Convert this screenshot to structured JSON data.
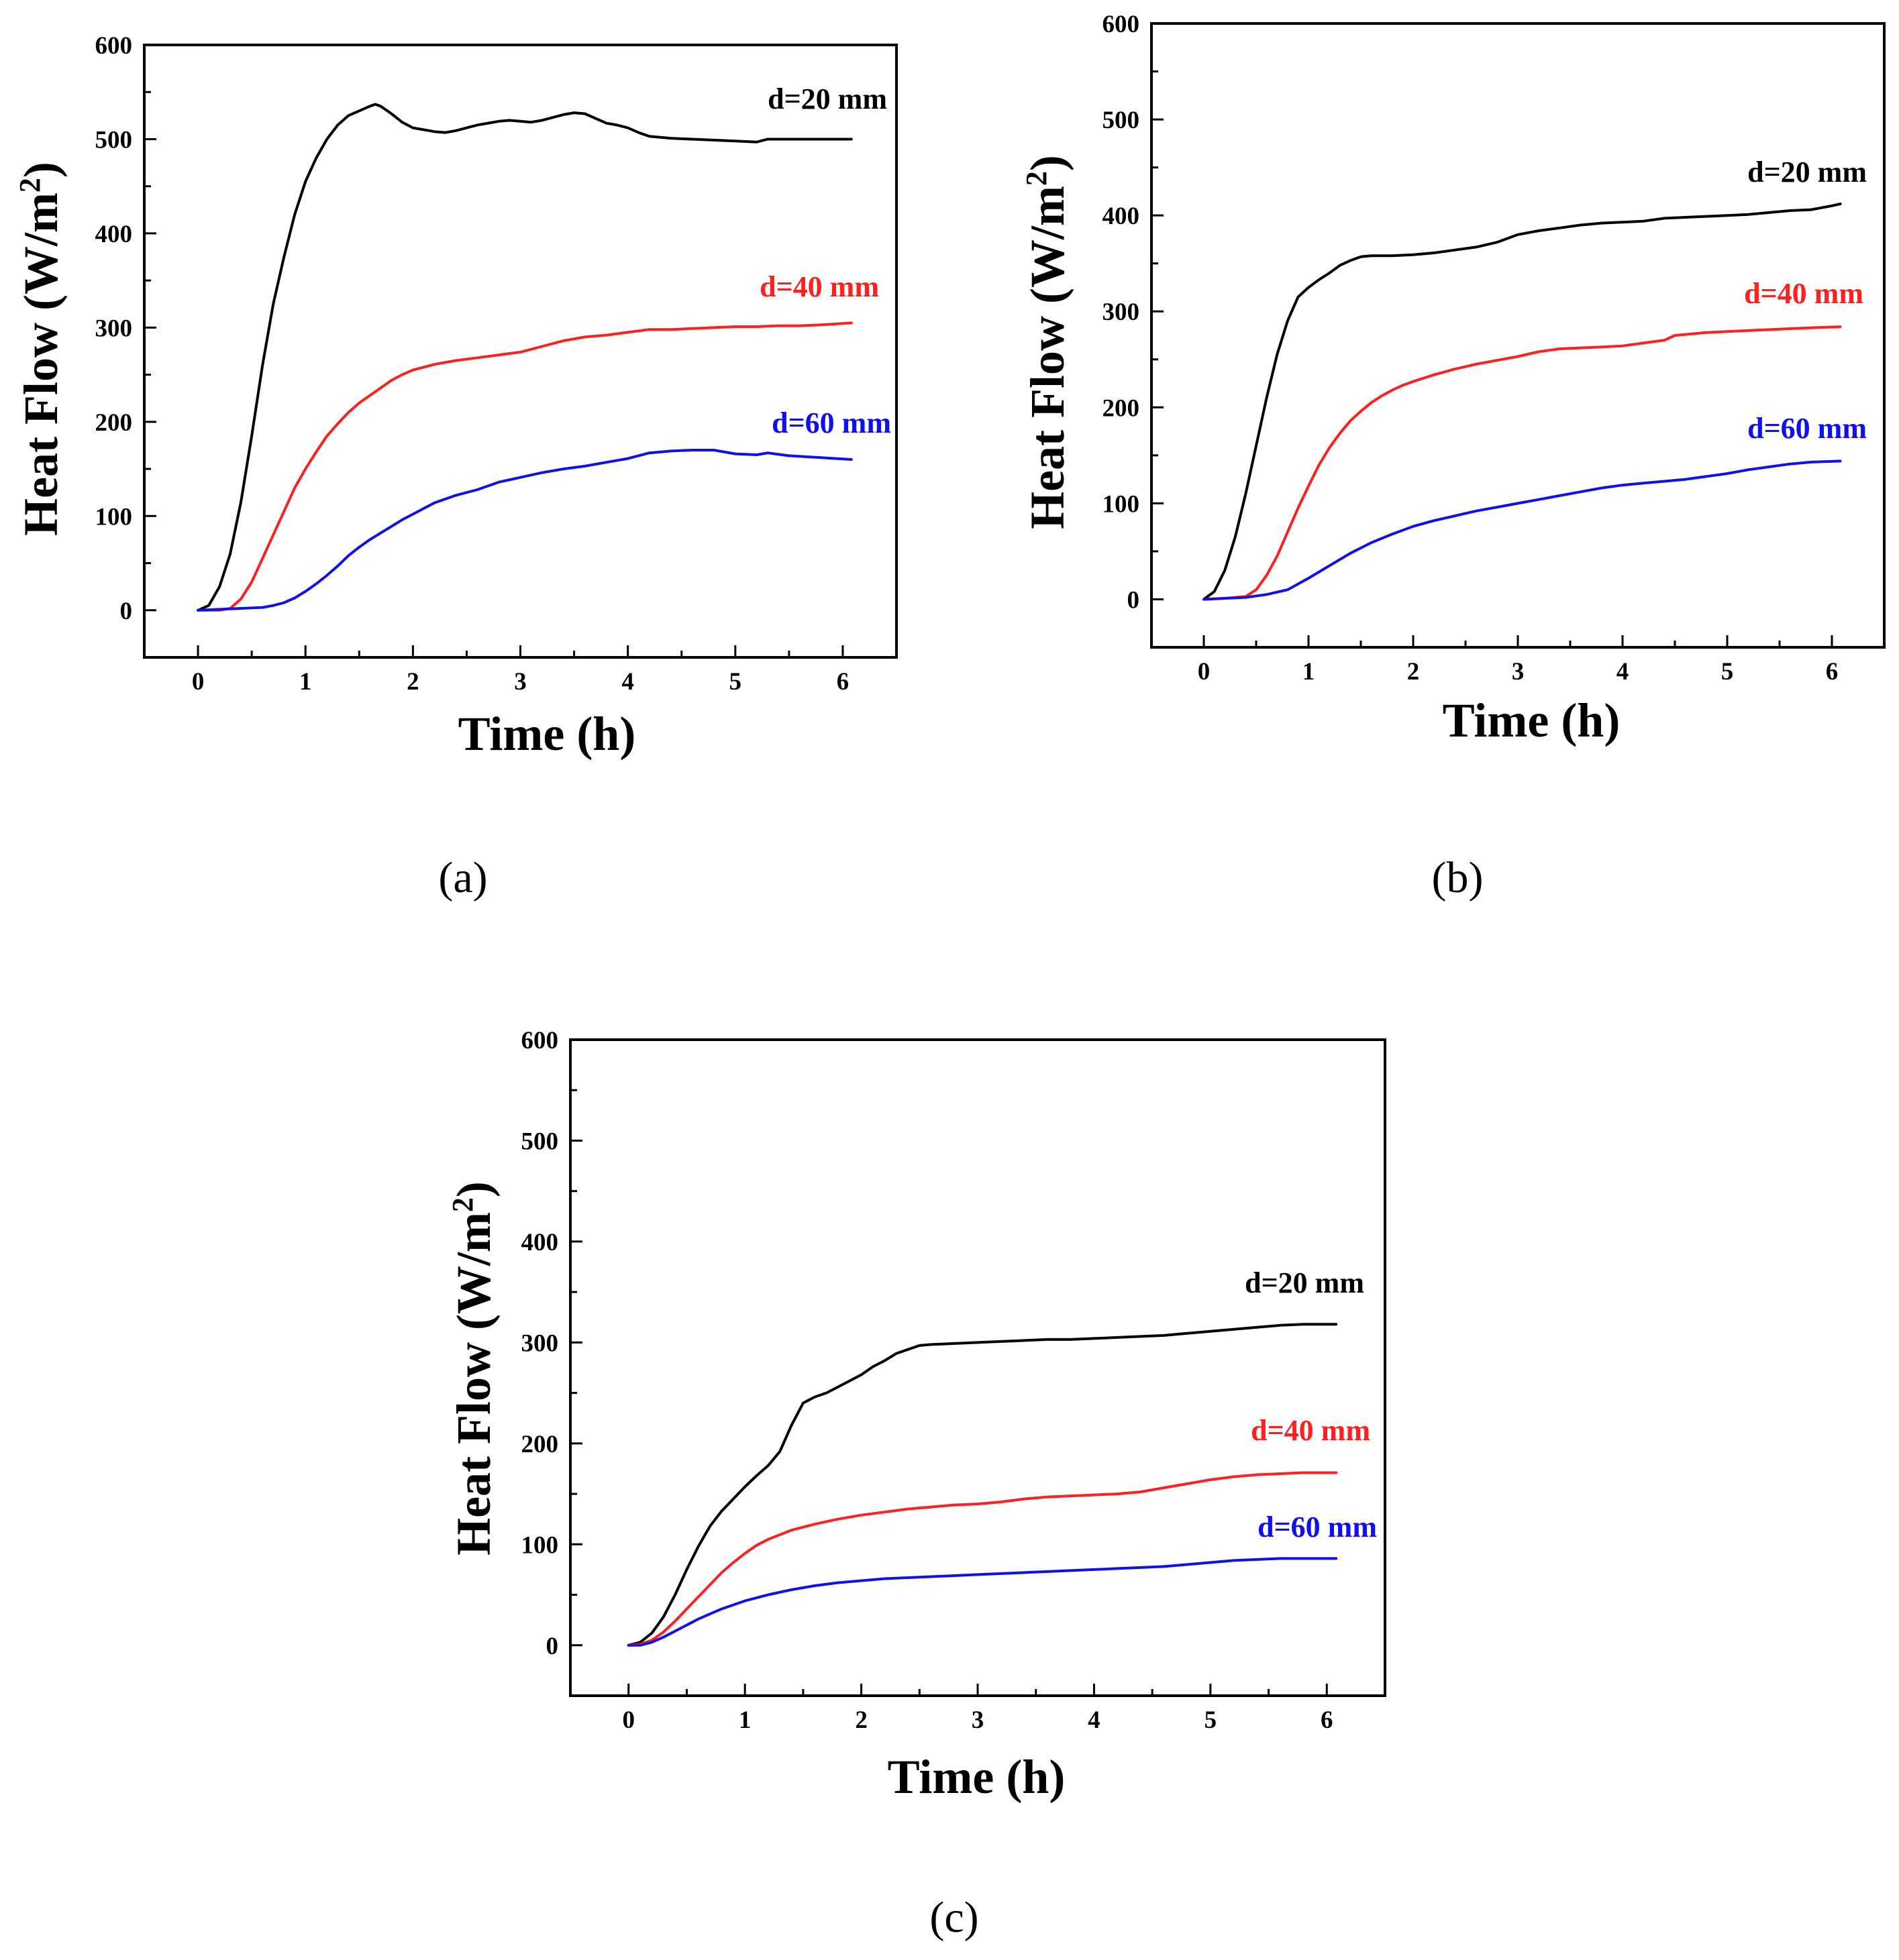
{
  "chart_data": [
    {
      "type": "line",
      "caption": "(a)",
      "xlabel": "Time (h)",
      "ylabel": "Heat Flow (W/m",
      "ylabel_sup": "2",
      "ylabel_close": ")",
      "xlim": [
        -0.5,
        6.5
      ],
      "ylim": [
        -50,
        600
      ],
      "xticks": [
        0,
        1,
        2,
        3,
        4,
        5,
        6
      ],
      "yticks": [
        0,
        100,
        200,
        300,
        400,
        500,
        600
      ],
      "series": [
        {
          "name": "d=20 mm",
          "color": "#000000",
          "x": [
            0,
            0.1,
            0.2,
            0.3,
            0.4,
            0.5,
            0.6,
            0.7,
            0.8,
            0.9,
            1.0,
            1.1,
            1.2,
            1.3,
            1.4,
            1.5,
            1.6,
            1.65,
            1.7,
            1.8,
            1.9,
            2.0,
            2.1,
            2.2,
            2.3,
            2.4,
            2.5,
            2.6,
            2.7,
            2.8,
            2.9,
            3.0,
            3.1,
            3.2,
            3.3,
            3.4,
            3.5,
            3.6,
            3.7,
            3.8,
            3.9,
            4.0,
            4.1,
            4.2,
            4.4,
            4.6,
            4.8,
            5.0,
            5.2,
            5.3,
            5.5,
            5.8,
            6.08
          ],
          "y": [
            0,
            5,
            25,
            60,
            115,
            185,
            260,
            325,
            375,
            420,
            455,
            480,
            500,
            515,
            525,
            530,
            535,
            537,
            535,
            527,
            518,
            512,
            510,
            508,
            507,
            509,
            512,
            515,
            517,
            519,
            520,
            519,
            518,
            520,
            523,
            526,
            528,
            527,
            522,
            517,
            515,
            512,
            507,
            503,
            501,
            500,
            499,
            498,
            497,
            500,
            500,
            500,
            500
          ]
        },
        {
          "name": "d=40 mm",
          "color": "#ff2020",
          "x": [
            0,
            0.2,
            0.3,
            0.4,
            0.5,
            0.6,
            0.7,
            0.8,
            0.9,
            1.0,
            1.1,
            1.2,
            1.3,
            1.4,
            1.5,
            1.6,
            1.7,
            1.8,
            1.9,
            2.0,
            2.2,
            2.4,
            2.6,
            2.8,
            3.0,
            3.2,
            3.4,
            3.6,
            3.8,
            4.0,
            4.2,
            4.4,
            4.6,
            4.8,
            5.0,
            5.2,
            5.4,
            5.6,
            5.8,
            6.08
          ],
          "y": [
            0,
            0,
            2,
            12,
            30,
            55,
            80,
            105,
            130,
            150,
            168,
            185,
            198,
            210,
            220,
            228,
            236,
            244,
            250,
            255,
            261,
            265,
            268,
            271,
            274,
            280,
            286,
            290,
            292,
            295,
            298,
            298,
            299,
            300,
            301,
            301,
            302,
            302,
            303,
            305
          ]
        },
        {
          "name": "d=60 mm",
          "color": "#1010ee",
          "x": [
            0,
            0.2,
            0.4,
            0.6,
            0.7,
            0.8,
            0.9,
            1.0,
            1.1,
            1.2,
            1.3,
            1.4,
            1.5,
            1.6,
            1.7,
            1.8,
            1.9,
            2.0,
            2.2,
            2.4,
            2.6,
            2.8,
            3.0,
            3.2,
            3.4,
            3.6,
            3.8,
            4.0,
            4.2,
            4.4,
            4.6,
            4.8,
            5.0,
            5.2,
            5.3,
            5.5,
            5.8,
            6.08
          ],
          "y": [
            0,
            1,
            2,
            3,
            5,
            8,
            13,
            20,
            28,
            37,
            47,
            58,
            67,
            75,
            82,
            89,
            96,
            102,
            114,
            122,
            128,
            136,
            141,
            146,
            150,
            153,
            157,
            161,
            167,
            169,
            170,
            170,
            166,
            165,
            167,
            164,
            162,
            160
          ]
        }
      ]
    },
    {
      "type": "line",
      "caption": "(b)",
      "xlabel": "Time (h)",
      "ylabel": "Heat Flow (W/m",
      "ylabel_sup": "2",
      "ylabel_close": ")",
      "xlim": [
        -0.5,
        6.5
      ],
      "ylim": [
        -50,
        600
      ],
      "xticks": [
        0,
        1,
        2,
        3,
        4,
        5,
        6
      ],
      "yticks": [
        0,
        100,
        200,
        300,
        400,
        500,
        600
      ],
      "series": [
        {
          "name": "d=20 mm",
          "color": "#000000",
          "x": [
            0,
            0.1,
            0.2,
            0.3,
            0.4,
            0.5,
            0.6,
            0.7,
            0.8,
            0.9,
            1.0,
            1.1,
            1.2,
            1.3,
            1.4,
            1.5,
            1.6,
            1.8,
            2.0,
            2.2,
            2.4,
            2.6,
            2.8,
            3.0,
            3.2,
            3.4,
            3.6,
            3.8,
            4.0,
            4.2,
            4.4,
            4.6,
            4.8,
            5.0,
            5.2,
            5.4,
            5.6,
            5.8,
            6.0,
            6.08
          ],
          "y": [
            0,
            8,
            30,
            65,
            110,
            160,
            210,
            255,
            290,
            315,
            325,
            333,
            340,
            348,
            353,
            357,
            358,
            358,
            359,
            361,
            364,
            367,
            372,
            380,
            384,
            387,
            390,
            392,
            393,
            394,
            397,
            398,
            399,
            400,
            401,
            403,
            405,
            406,
            410,
            412
          ]
        },
        {
          "name": "d=40 mm",
          "color": "#ff2020",
          "x": [
            0,
            0.2,
            0.4,
            0.5,
            0.6,
            0.7,
            0.8,
            0.9,
            1.0,
            1.1,
            1.2,
            1.3,
            1.4,
            1.5,
            1.6,
            1.7,
            1.8,
            1.9,
            2.0,
            2.2,
            2.4,
            2.6,
            2.8,
            3.0,
            3.2,
            3.4,
            3.6,
            3.8,
            4.0,
            4.2,
            4.4,
            4.5,
            4.6,
            4.8,
            5.0,
            5.2,
            5.4,
            5.6,
            5.8,
            6.08
          ],
          "y": [
            0,
            1,
            3,
            10,
            25,
            45,
            70,
            95,
            118,
            140,
            158,
            173,
            186,
            196,
            205,
            212,
            218,
            223,
            227,
            234,
            240,
            245,
            249,
            253,
            258,
            261,
            262,
            263,
            264,
            267,
            270,
            275,
            276,
            278,
            279,
            280,
            281,
            282,
            283,
            284
          ]
        },
        {
          "name": "d=60 mm",
          "color": "#1010ee",
          "x": [
            0,
            0.2,
            0.4,
            0.6,
            0.8,
            1.0,
            1.2,
            1.4,
            1.6,
            1.8,
            2.0,
            2.2,
            2.4,
            2.6,
            2.8,
            3.0,
            3.2,
            3.4,
            3.6,
            3.8,
            4.0,
            4.2,
            4.4,
            4.6,
            4.8,
            5.0,
            5.2,
            5.4,
            5.6,
            5.8,
            6.08
          ],
          "y": [
            0,
            1,
            2,
            5,
            10,
            22,
            35,
            48,
            59,
            68,
            76,
            82,
            87,
            92,
            96,
            100,
            104,
            108,
            112,
            116,
            119,
            121,
            123,
            125,
            128,
            131,
            135,
            138,
            141,
            143,
            144
          ]
        }
      ]
    },
    {
      "type": "line",
      "caption": "(c)",
      "xlabel": "Time (h)",
      "ylabel": "Heat Flow (W/m",
      "ylabel_sup": "2",
      "ylabel_close": ")",
      "xlim": [
        -0.5,
        6.5
      ],
      "ylim": [
        -50,
        600
      ],
      "xticks": [
        0,
        1,
        2,
        3,
        4,
        5,
        6
      ],
      "yticks": [
        0,
        100,
        200,
        300,
        400,
        500,
        600
      ],
      "series": [
        {
          "name": "d=20 mm",
          "color": "#000000",
          "x": [
            0,
            0.1,
            0.2,
            0.3,
            0.4,
            0.5,
            0.6,
            0.7,
            0.8,
            0.9,
            1.0,
            1.1,
            1.2,
            1.3,
            1.4,
            1.5,
            1.6,
            1.7,
            1.8,
            1.9,
            2.0,
            2.1,
            2.2,
            2.3,
            2.4,
            2.5,
            2.6,
            2.8,
            3.0,
            3.2,
            3.4,
            3.6,
            3.8,
            4.0,
            4.2,
            4.4,
            4.6,
            4.8,
            5.0,
            5.2,
            5.4,
            5.6,
            5.8,
            6.08
          ],
          "y": [
            0,
            3,
            12,
            28,
            50,
            75,
            98,
            118,
            133,
            145,
            157,
            168,
            178,
            192,
            218,
            240,
            246,
            250,
            256,
            262,
            268,
            276,
            282,
            289,
            293,
            297,
            298,
            299,
            300,
            301,
            302,
            303,
            303,
            304,
            305,
            306,
            307,
            309,
            311,
            313,
            315,
            317,
            318,
            318
          ]
        },
        {
          "name": "d=40 mm",
          "color": "#ff2020",
          "x": [
            0,
            0.1,
            0.2,
            0.3,
            0.4,
            0.5,
            0.6,
            0.7,
            0.8,
            0.9,
            1.0,
            1.1,
            1.2,
            1.4,
            1.6,
            1.8,
            2.0,
            2.2,
            2.4,
            2.6,
            2.8,
            3.0,
            3.2,
            3.4,
            3.6,
            3.8,
            4.0,
            4.2,
            4.4,
            4.6,
            4.8,
            5.0,
            5.2,
            5.4,
            5.6,
            5.8,
            6.08
          ],
          "y": [
            0,
            1,
            5,
            13,
            24,
            36,
            48,
            60,
            72,
            82,
            91,
            99,
            105,
            114,
            120,
            125,
            129,
            132,
            135,
            137,
            139,
            140,
            142,
            145,
            147,
            148,
            149,
            150,
            152,
            156,
            160,
            164,
            167,
            169,
            170,
            171,
            171
          ]
        },
        {
          "name": "d=60 mm",
          "color": "#1010ee",
          "x": [
            0,
            0.1,
            0.2,
            0.3,
            0.4,
            0.5,
            0.6,
            0.7,
            0.8,
            0.9,
            1.0,
            1.2,
            1.4,
            1.6,
            1.8,
            2.0,
            2.2,
            2.4,
            2.6,
            2.8,
            3.0,
            3.2,
            3.4,
            3.6,
            3.8,
            4.0,
            4.2,
            4.4,
            4.6,
            4.8,
            5.0,
            5.2,
            5.4,
            5.6,
            5.8,
            6.08
          ],
          "y": [
            0,
            0,
            3,
            8,
            14,
            20,
            26,
            31,
            36,
            40,
            44,
            50,
            55,
            59,
            62,
            64,
            66,
            67,
            68,
            69,
            70,
            71,
            72,
            73,
            74,
            75,
            76,
            77,
            78,
            80,
            82,
            84,
            85,
            86,
            86,
            86
          ]
        }
      ]
    }
  ]
}
